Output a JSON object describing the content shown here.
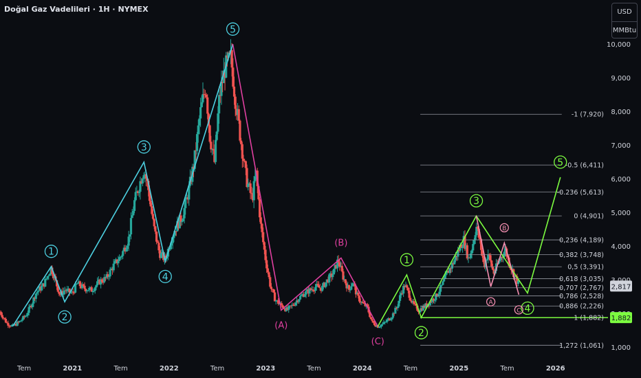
{
  "header": {
    "title": "Doğal Gaz Vadelileri · 1H · NYMEX"
  },
  "units": {
    "currency": "USD",
    "unit": "MMBtu"
  },
  "colors": {
    "bg": "#0b0d12",
    "up": "#26a69a",
    "down": "#ef5350",
    "cyan": "#4dd0e1",
    "magenta": "#e040a0",
    "green": "#7cfc40",
    "abc": "#f48fb1",
    "fib_line": "#9598a1",
    "axis_text": "#d1d4dc"
  },
  "chart_data": {
    "type": "line",
    "ylim": [
      700,
      10700
    ],
    "y_ticks": [
      1000,
      2000,
      3000,
      4000,
      5000,
      6000,
      7000,
      8000,
      9000,
      10000
    ],
    "y_tick_labels": [
      "1,000",
      "2,000",
      "3,000",
      "4,000",
      "5,000",
      "6,000",
      "7,000",
      "8,000",
      "9,000",
      "10,000"
    ],
    "x_ticks": [
      {
        "t": 2020.5,
        "label": "Tem"
      },
      {
        "t": 2021.0,
        "label": "2021"
      },
      {
        "t": 2021.5,
        "label": "Tem"
      },
      {
        "t": 2022.0,
        "label": "2022"
      },
      {
        "t": 2022.5,
        "label": "Tem"
      },
      {
        "t": 2023.0,
        "label": "2023"
      },
      {
        "t": 2023.5,
        "label": "Tem"
      },
      {
        "t": 2024.0,
        "label": "2024"
      },
      {
        "t": 2024.5,
        "label": "Tem"
      },
      {
        "t": 2025.0,
        "label": "2025"
      },
      {
        "t": 2025.5,
        "label": "Tem"
      },
      {
        "t": 2026.0,
        "label": "2026"
      }
    ],
    "xlim": [
      2020.25,
      2026.55
    ],
    "price_series": [
      [
        2020.25,
        2.05
      ],
      [
        2020.32,
        1.72
      ],
      [
        2020.38,
        1.62
      ],
      [
        2020.45,
        1.75
      ],
      [
        2020.52,
        1.95
      ],
      [
        2020.58,
        2.3
      ],
      [
        2020.62,
        2.6
      ],
      [
        2020.7,
        2.85
      ],
      [
        2020.78,
        3.35
      ],
      [
        2020.82,
        3.0
      ],
      [
        2020.87,
        2.55
      ],
      [
        2020.92,
        2.7
      ],
      [
        2021.0,
        2.6
      ],
      [
        2021.05,
        2.9
      ],
      [
        2021.12,
        2.75
      ],
      [
        2021.2,
        2.7
      ],
      [
        2021.28,
        2.95
      ],
      [
        2021.35,
        3.05
      ],
      [
        2021.42,
        3.4
      ],
      [
        2021.5,
        3.7
      ],
      [
        2021.58,
        4.2
      ],
      [
        2021.64,
        5.3
      ],
      [
        2021.7,
        5.9
      ],
      [
        2021.74,
        6.3
      ],
      [
        2021.78,
        5.8
      ],
      [
        2021.84,
        4.6
      ],
      [
        2021.9,
        3.8
      ],
      [
        2021.96,
        3.6
      ],
      [
        2022.02,
        4.2
      ],
      [
        2022.08,
        4.6
      ],
      [
        2022.14,
        4.9
      ],
      [
        2022.2,
        5.6
      ],
      [
        2022.26,
        6.5
      ],
      [
        2022.32,
        7.9
      ],
      [
        2022.38,
        8.8
      ],
      [
        2022.42,
        7.3
      ],
      [
        2022.47,
        6.5
      ],
      [
        2022.52,
        8.4
      ],
      [
        2022.58,
        9.3
      ],
      [
        2022.64,
        9.6
      ],
      [
        2022.68,
        8.5
      ],
      [
        2022.74,
        7.2
      ],
      [
        2022.8,
        6.0
      ],
      [
        2022.86,
        5.4
      ],
      [
        2022.9,
        6.2
      ],
      [
        2022.95,
        4.6
      ],
      [
        2023.0,
        3.6
      ],
      [
        2023.05,
        2.8
      ],
      [
        2023.1,
        2.4
      ],
      [
        2023.16,
        2.25
      ],
      [
        2023.22,
        2.1
      ],
      [
        2023.28,
        2.25
      ],
      [
        2023.34,
        2.45
      ],
      [
        2023.4,
        2.6
      ],
      [
        2023.46,
        2.7
      ],
      [
        2023.52,
        2.8
      ],
      [
        2023.58,
        2.75
      ],
      [
        2023.64,
        3.0
      ],
      [
        2023.7,
        3.2
      ],
      [
        2023.75,
        3.6
      ],
      [
        2023.8,
        3.1
      ],
      [
        2023.86,
        2.7
      ],
      [
        2023.9,
        2.95
      ],
      [
        2023.95,
        2.5
      ],
      [
        2024.0,
        2.3
      ],
      [
        2024.05,
        2.2
      ],
      [
        2024.1,
        1.75
      ],
      [
        2024.16,
        1.62
      ],
      [
        2024.22,
        1.7
      ],
      [
        2024.3,
        1.9
      ],
      [
        2024.36,
        2.2
      ],
      [
        2024.4,
        2.6
      ],
      [
        2024.44,
        2.85
      ],
      [
        2024.48,
        2.6
      ],
      [
        2024.52,
        2.3
      ],
      [
        2024.58,
        2.1
      ],
      [
        2024.64,
        2.2
      ],
      [
        2024.7,
        2.35
      ],
      [
        2024.76,
        2.5
      ],
      [
        2024.82,
        2.8
      ],
      [
        2024.88,
        3.2
      ],
      [
        2024.94,
        3.5
      ],
      [
        2025.0,
        3.9
      ],
      [
        2025.05,
        4.2
      ],
      [
        2025.1,
        3.6
      ],
      [
        2025.14,
        4.0
      ],
      [
        2025.18,
        4.6
      ],
      [
        2025.22,
        4.1
      ],
      [
        2025.26,
        3.4
      ],
      [
        2025.3,
        3.8
      ],
      [
        2025.36,
        3.2
      ],
      [
        2025.42,
        3.6
      ],
      [
        2025.48,
        3.9
      ],
      [
        2025.52,
        3.5
      ],
      [
        2025.58,
        3.1
      ],
      [
        2025.62,
        2.85
      ]
    ],
    "fib_levels": [
      {
        "label": "-1 (7,920)",
        "price": 7920
      },
      {
        "label": "-0.5 (6,411)",
        "price": 6411
      },
      {
        "label": "-0.236 (5,613)",
        "price": 5613
      },
      {
        "label": "0 (4,901)",
        "price": 4901
      },
      {
        "label": "0,236 (4,189)",
        "price": 4189
      },
      {
        "label": "0,382 (3,748)",
        "price": 3748
      },
      {
        "label": "0,5 (3,391)",
        "price": 3391
      },
      {
        "label": "0,618 (3,035)",
        "price": 3035
      },
      {
        "label": "0,707 (2,767)",
        "price": 2767
      },
      {
        "label": "0,786 (2,528)",
        "price": 2528
      },
      {
        "label": "0,886 (2,226)",
        "price": 2226
      },
      {
        "label": "1 (1,882)",
        "price": 1882
      },
      {
        "label": "1,272 (1,061)",
        "price": 1061
      }
    ],
    "fib_x_range": [
      2024.6,
      2026.05
    ],
    "current_price": {
      "label": "2,817",
      "value": 2817
    },
    "support_price": {
      "label": "1,882",
      "value": 1882
    },
    "wave_cyan": [
      {
        "t": 2020.38,
        "p": 1620,
        "label": ""
      },
      {
        "t": 2020.78,
        "p": 3400,
        "label": "1"
      },
      {
        "t": 2020.92,
        "p": 2350,
        "label": "2"
      },
      {
        "t": 2021.74,
        "p": 6500,
        "label": "3"
      },
      {
        "t": 2021.96,
        "p": 3550,
        "label": "4"
      },
      {
        "t": 2022.66,
        "p": 10000,
        "label": "5"
      }
    ],
    "wave_magenta": [
      {
        "t": 2022.66,
        "p": 10000,
        "label": ""
      },
      {
        "t": 2023.16,
        "p": 2100,
        "label": "(A)"
      },
      {
        "t": 2023.78,
        "p": 3650,
        "label": "(B)"
      },
      {
        "t": 2024.16,
        "p": 1620,
        "label": "(C)"
      }
    ],
    "wave_green": [
      {
        "t": 2024.16,
        "p": 1620,
        "label": ""
      },
      {
        "t": 2024.46,
        "p": 3150,
        "label": "1"
      },
      {
        "t": 2024.61,
        "p": 1882,
        "label": "2"
      },
      {
        "t": 2025.18,
        "p": 4901,
        "label": "3"
      },
      {
        "t": 2025.71,
        "p": 2610,
        "label": "4"
      },
      {
        "t": 2026.05,
        "p": 6050,
        "label": "5"
      }
    ],
    "wave_abc": [
      {
        "t": 2025.18,
        "p": 4901,
        "label": ""
      },
      {
        "t": 2025.33,
        "p": 2800,
        "label": "A"
      },
      {
        "t": 2025.47,
        "p": 4100,
        "label": "B"
      },
      {
        "t": 2025.62,
        "p": 2560,
        "label": "C"
      }
    ]
  }
}
